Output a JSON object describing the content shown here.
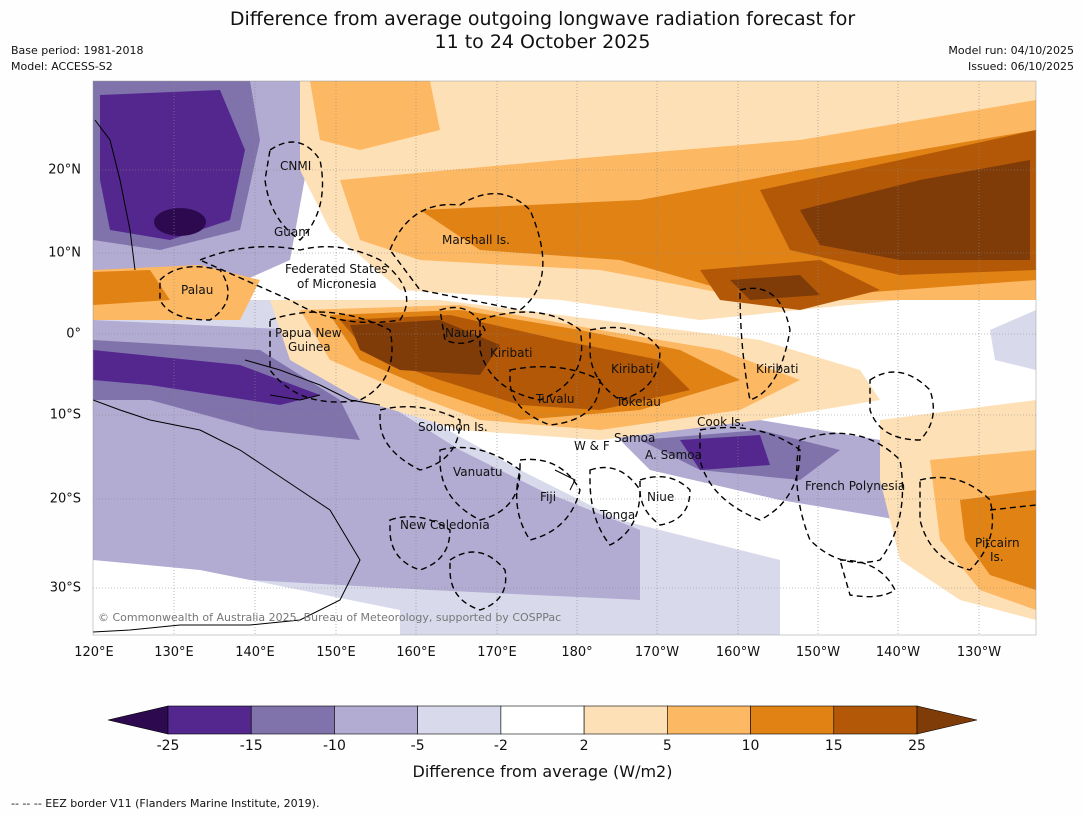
{
  "title": {
    "line1": "Difference from average outgoing longwave radiation forecast for",
    "line2": "11 to 24 October 2025"
  },
  "meta": {
    "base_period": "Base period: 1981-2018",
    "model": "Model: ACCESS-S2",
    "model_run": "Model run: 04/10/2025",
    "issued": "Issued: 06/10/2025"
  },
  "map": {
    "lat_labels": [
      "20°N",
      "10°N",
      "0°",
      "10°S",
      "20°S",
      "30°S"
    ],
    "lon_labels": [
      "120°E",
      "130°E",
      "140°E",
      "150°E",
      "160°E",
      "170°E",
      "180°",
      "170°W",
      "160°W",
      "150°W",
      "140°W",
      "130°W"
    ],
    "places": [
      "CNMI",
      "Guam",
      "Marshall Is.",
      "Federated States",
      "of Micronesia",
      "Palau",
      "Papua New",
      "Guinea",
      "Nauru",
      "Kiribati",
      "Kiribati",
      "Kiribati",
      "Tuvalu",
      "Tokelau",
      "Solomon Is.",
      "Cook Is.",
      "Samoa",
      "W & F",
      "A. Samoa",
      "Vanuatu",
      "Fiji",
      "Niue",
      "Tonga",
      "French Polynesia",
      "New Caledonia",
      "Pitcairn",
      "Is."
    ],
    "copyright": "© Commonwealth of Australia 2025, Bureau of Meteorology, supported by COSPPac"
  },
  "colorbar": {
    "ticks": [
      "-25",
      "-15",
      "-10",
      "-5",
      "-2",
      "2",
      "5",
      "10",
      "15",
      "25"
    ],
    "colors": [
      "#2d0a4f",
      "#54278f",
      "#8073ac",
      "#b2abd2",
      "#d8daeb",
      "#ffffff",
      "#fee0b6",
      "#fdb863",
      "#e08214",
      "#b35806",
      "#7f3b08"
    ],
    "label": "Difference from average (W/m2)"
  },
  "footnote": "-- -- -- EEZ border V11 (Flanders Marine Institute, 2019)."
}
